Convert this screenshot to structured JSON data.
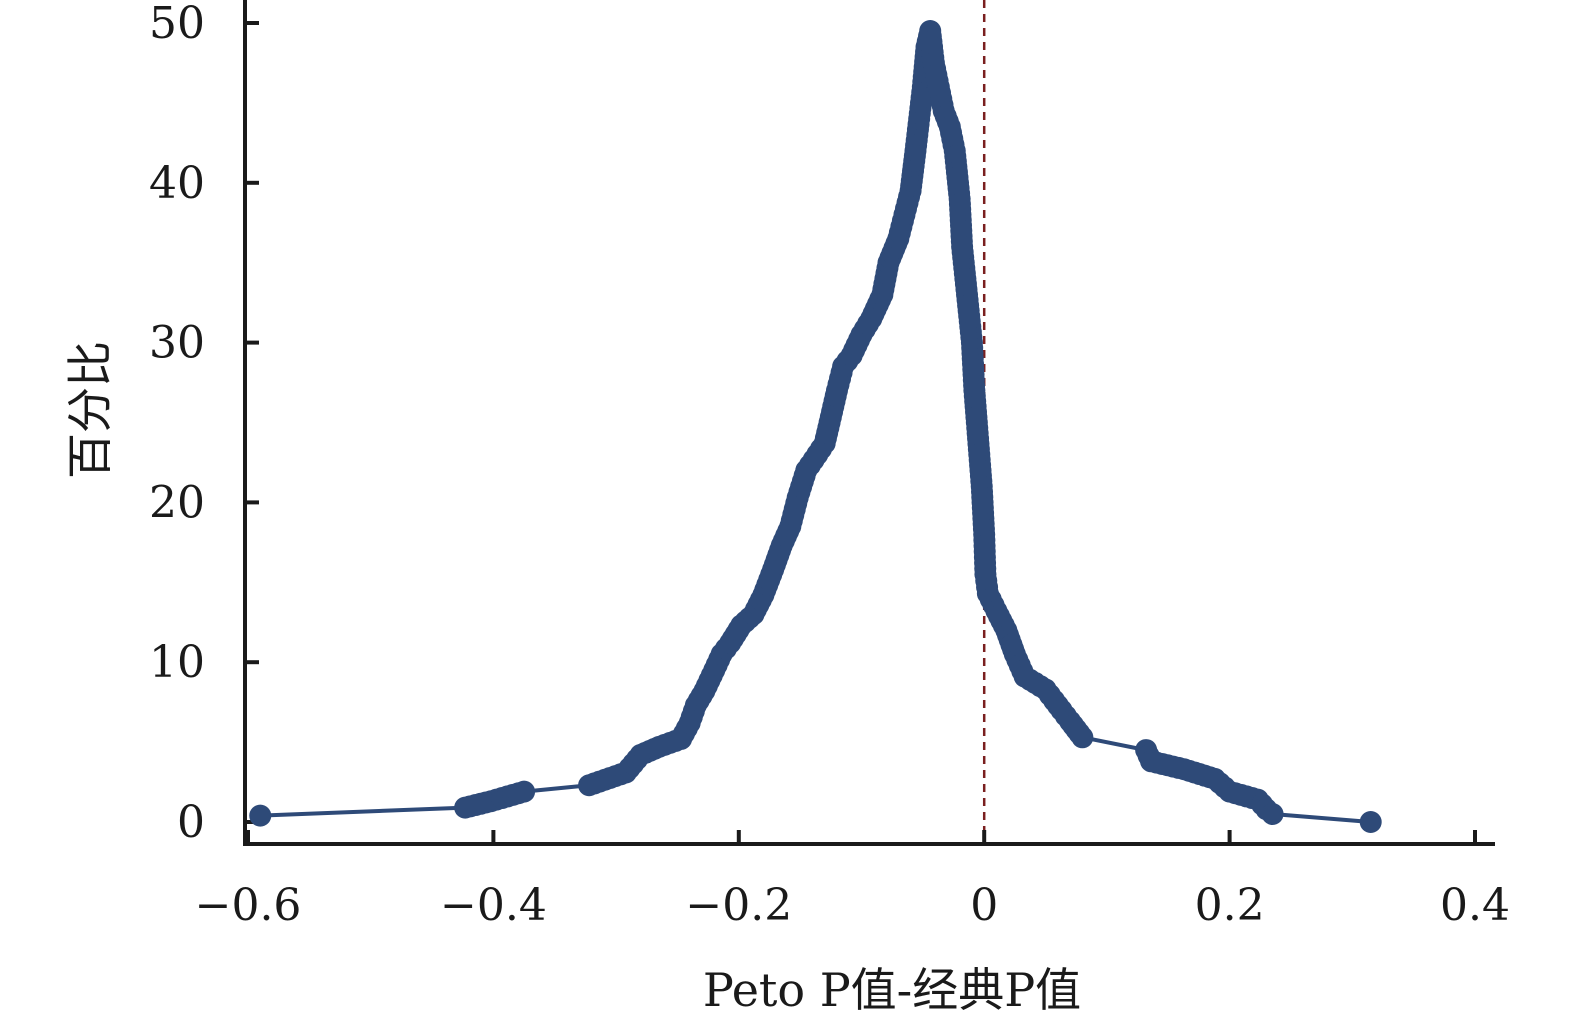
{
  "chart_data": {
    "type": "line",
    "title": "",
    "xlabel": "Peto P值-经典P值",
    "ylabel": "百分比",
    "xlim": [
      -0.6,
      0.4
    ],
    "ylim": [
      0,
      50
    ],
    "xticks": [
      -0.6,
      -0.4,
      -0.2,
      0,
      0.2,
      0.4
    ],
    "xtick_labels": [
      "−0.6",
      "−0.4",
      "−0.2",
      "0",
      "0.2",
      "0.4"
    ],
    "yticks": [
      0,
      10,
      20,
      30,
      40,
      50
    ],
    "ytick_labels": [
      "0",
      "10",
      "20",
      "30",
      "40",
      "50"
    ],
    "grid": false,
    "legend": "none",
    "reference_line": {
      "x": 0,
      "style": "dashed",
      "color": "#7a1f1f"
    },
    "series_color": "#2e4a78",
    "series": [
      {
        "points": [
          [
            -0.59,
            0.4
          ],
          [
            -0.423,
            0.9
          ],
          [
            -0.402,
            1.3
          ],
          [
            -0.375,
            1.9
          ],
          [
            -0.322,
            2.3
          ],
          [
            -0.292,
            3.1
          ],
          [
            -0.28,
            4.2
          ],
          [
            -0.265,
            4.7
          ],
          [
            -0.247,
            5.2
          ],
          [
            -0.24,
            6.2
          ],
          [
            -0.235,
            7.3
          ],
          [
            -0.228,
            8.2
          ],
          [
            -0.22,
            9.5
          ],
          [
            -0.214,
            10.5
          ],
          [
            -0.207,
            11.2
          ],
          [
            -0.198,
            12.3
          ],
          [
            -0.188,
            13.0
          ],
          [
            -0.18,
            14.2
          ],
          [
            -0.172,
            15.8
          ],
          [
            -0.165,
            17.3
          ],
          [
            -0.158,
            18.5
          ],
          [
            -0.152,
            20.3
          ],
          [
            -0.145,
            22.0
          ],
          [
            -0.136,
            23.0
          ],
          [
            -0.13,
            23.7
          ],
          [
            -0.126,
            25.0
          ],
          [
            -0.12,
            27.0
          ],
          [
            -0.115,
            28.5
          ],
          [
            -0.108,
            29.2
          ],
          [
            -0.1,
            30.5
          ],
          [
            -0.092,
            31.5
          ],
          [
            -0.083,
            33.0
          ],
          [
            -0.078,
            35.0
          ],
          [
            -0.07,
            36.5
          ],
          [
            -0.065,
            38.0
          ],
          [
            -0.06,
            39.5
          ],
          [
            -0.056,
            42.0
          ],
          [
            -0.053,
            44.0
          ],
          [
            -0.05,
            46.0
          ],
          [
            -0.047,
            48.5
          ],
          [
            -0.044,
            49.5
          ],
          [
            -0.041,
            47.5
          ],
          [
            -0.037,
            46.0
          ],
          [
            -0.033,
            44.5
          ],
          [
            -0.028,
            43.5
          ],
          [
            -0.024,
            42.0
          ],
          [
            -0.02,
            39.0
          ],
          [
            -0.018,
            36.0
          ],
          [
            -0.014,
            33.0
          ],
          [
            -0.01,
            30.0
          ],
          [
            -0.008,
            27.0
          ],
          [
            -0.005,
            24.0
          ],
          [
            -0.002,
            21.0
          ],
          [
            0.0,
            18.0
          ],
          [
            0.001,
            15.5
          ],
          [
            0.003,
            14.3
          ],
          [
            0.01,
            13.2
          ],
          [
            0.018,
            12.0
          ],
          [
            0.025,
            10.5
          ],
          [
            0.033,
            9.1
          ],
          [
            0.05,
            8.3
          ],
          [
            0.057,
            7.6
          ],
          [
            0.063,
            7.0
          ],
          [
            0.07,
            6.3
          ],
          [
            0.08,
            5.3
          ],
          [
            0.132,
            4.5
          ],
          [
            0.136,
            3.8
          ],
          [
            0.163,
            3.3
          ],
          [
            0.188,
            2.7
          ],
          [
            0.2,
            1.9
          ],
          [
            0.223,
            1.4
          ],
          [
            0.23,
            0.8
          ],
          [
            0.235,
            0.5
          ],
          [
            0.315,
            0.0
          ]
        ]
      }
    ]
  }
}
